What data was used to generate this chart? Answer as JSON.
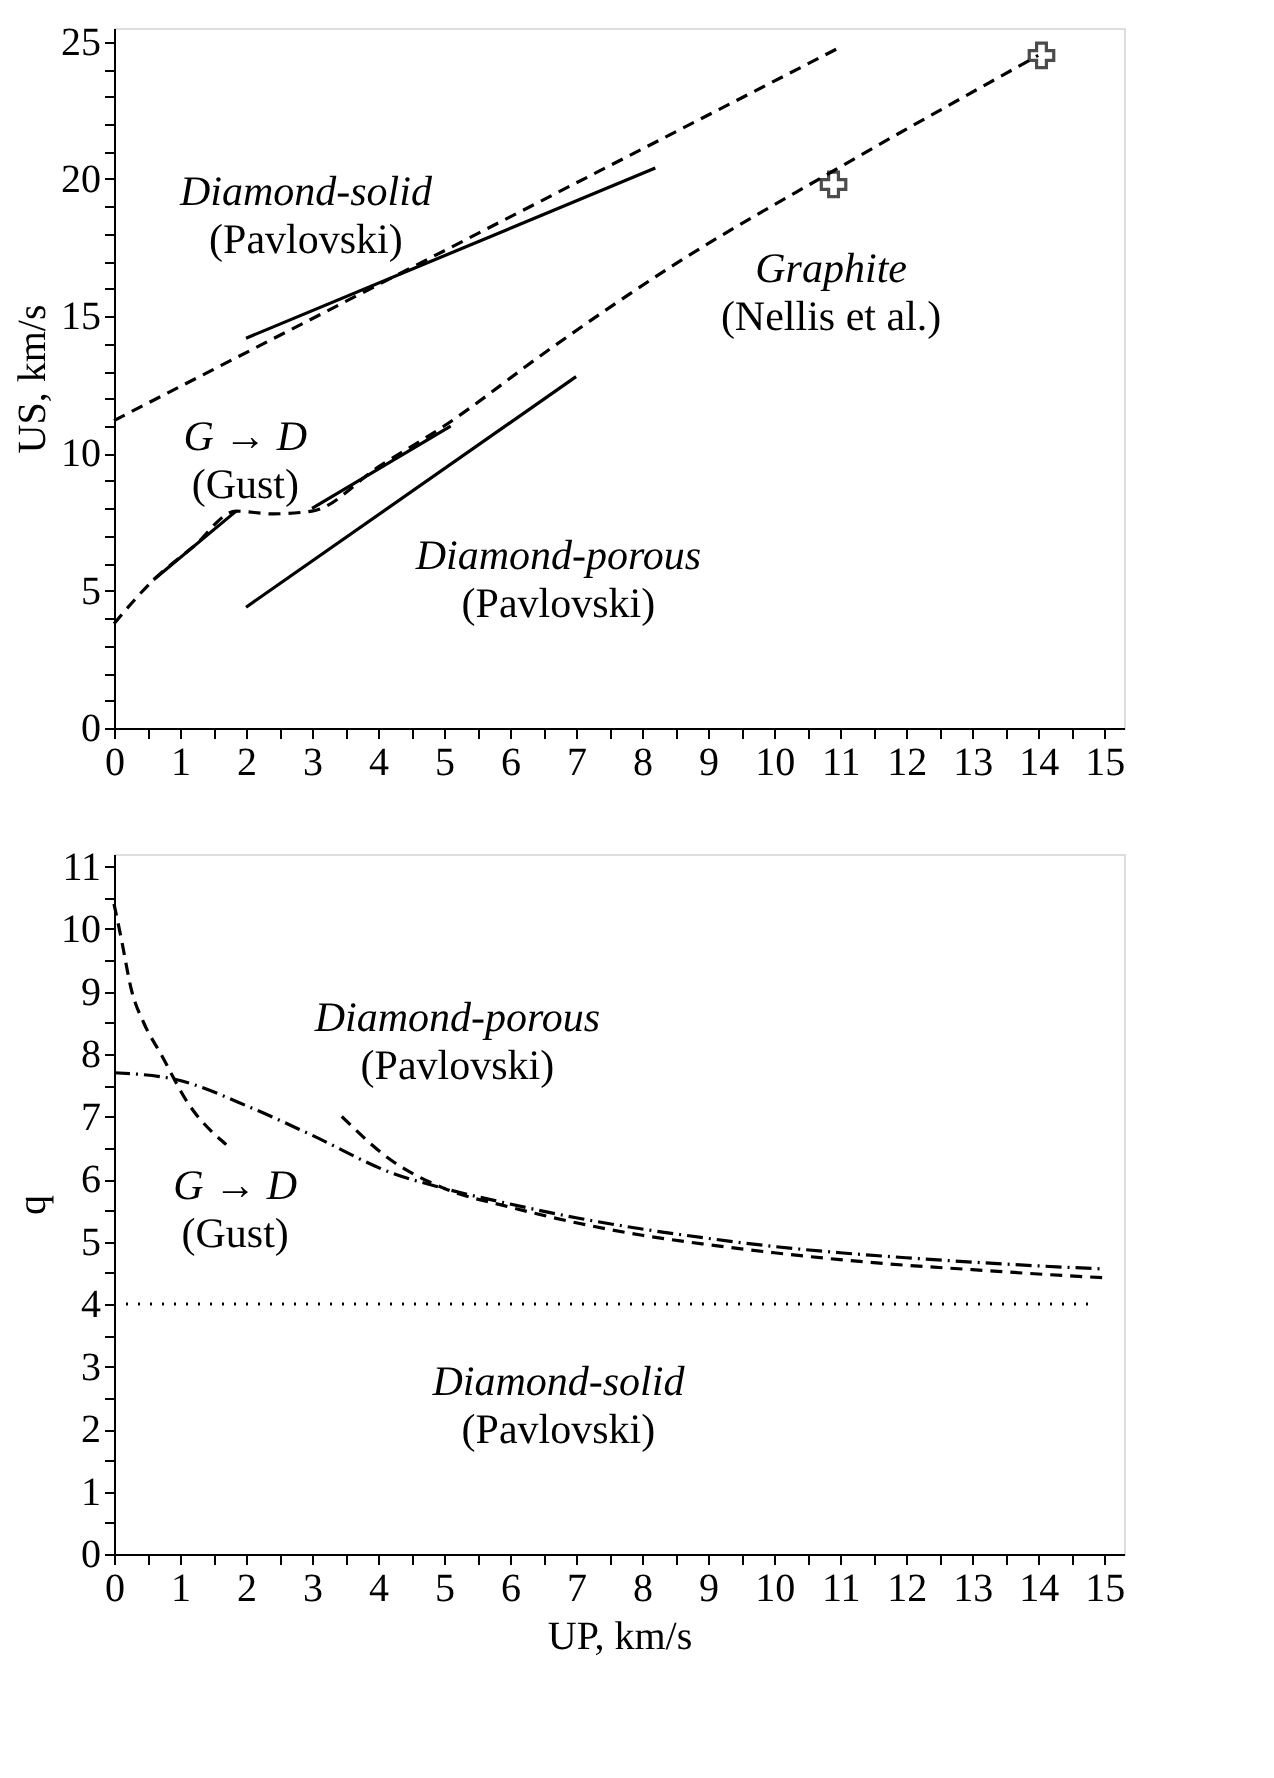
{
  "chart_data": [
    {
      "type": "line",
      "ylabel": "US, km/s",
      "xlim": [
        0,
        15.3
      ],
      "ylim": [
        0,
        25.5
      ],
      "xticks": [
        0,
        {
          "value": 0.5,
          "label": null
        },
        1,
        {
          "value": 1.5,
          "label": null
        },
        2,
        {
          "value": 2.5,
          "label": null
        },
        3,
        {
          "value": 3.5,
          "label": null
        },
        4,
        {
          "value": 4.5,
          "label": null
        },
        5,
        {
          "value": 5.5,
          "label": null
        },
        6,
        {
          "value": 6.5,
          "label": null
        },
        7,
        {
          "value": 7.5,
          "label": null
        },
        8,
        {
          "value": 8.5,
          "label": null
        },
        9,
        {
          "value": 9.5,
          "label": null
        },
        10,
        {
          "value": 10.5,
          "label": null
        },
        11,
        {
          "value": 11.5,
          "label": null
        },
        12,
        {
          "value": 12.5,
          "label": null
        },
        13,
        {
          "value": 13.5,
          "label": null
        },
        14,
        {
          "value": 14.5,
          "label": null
        },
        15
      ],
      "yticks": [
        0,
        {
          "value": 1,
          "label": null
        },
        {
          "value": 2,
          "label": null
        },
        {
          "value": 3,
          "label": null
        },
        {
          "value": 4,
          "label": null
        },
        5,
        {
          "value": 6,
          "label": null
        },
        {
          "value": 7,
          "label": null
        },
        {
          "value": 8,
          "label": null
        },
        {
          "value": 9,
          "label": null
        },
        10,
        {
          "value": 11,
          "label": null
        },
        {
          "value": 12,
          "label": null
        },
        {
          "value": 13,
          "label": null
        },
        {
          "value": 14,
          "label": null
        },
        15,
        {
          "value": 16,
          "label": null
        },
        {
          "value": 17,
          "label": null
        },
        {
          "value": 18,
          "label": null
        },
        {
          "value": 19,
          "label": null
        },
        20,
        {
          "value": 21,
          "label": null
        },
        {
          "value": 22,
          "label": null
        },
        {
          "value": 23,
          "label": null
        },
        {
          "value": 24,
          "label": null
        },
        25
      ],
      "grid": false,
      "series": [
        {
          "line_style": "solid",
          "color": "#000000",
          "x": [
            2.0,
            8.2
          ],
          "values": [
            14.2,
            20.4
          ]
        },
        {
          "line_style": "dashed",
          "color": "#000000",
          "x": [
            0,
            11.0
          ],
          "values": [
            11.2,
            24.8
          ]
        },
        {
          "line_style": "dashed",
          "color": "#000000",
          "x": [
            0,
            0.6,
            1.2,
            1.85,
            2.4,
            3.0,
            4.0,
            5.0,
            6.6,
            8.5,
            10.9,
            14.0
          ],
          "values": [
            3.8,
            5.4,
            6.6,
            7.9,
            7.8,
            7.9,
            9.5,
            11.0,
            13.8,
            16.9,
            20.3,
            24.5
          ]
        },
        {
          "line_style": "solid",
          "color": "#000000",
          "x": [
            0.6,
            1.85
          ],
          "values": [
            5.4,
            7.9
          ]
        },
        {
          "line_style": "solid",
          "color": "#000000",
          "x": [
            3.0,
            5.1
          ],
          "values": [
            8.0,
            11.0
          ]
        },
        {
          "line_style": "solid",
          "color": "#000000",
          "x": [
            2.0,
            7.0
          ],
          "values": [
            4.4,
            12.8
          ]
        },
        {
          "type": "scatter",
          "marker": "cross",
          "color": "#000000",
          "x": [
            10.9,
            14.05
          ],
          "values": [
            19.8,
            24.5
          ]
        }
      ],
      "annotations": [
        "Diamond-solid\n(Pavlovski)",
        "Graphite\n(Nellis et al.)",
        "G → D\n(Gust)",
        "Diamond-porous\n(Pavlovski)"
      ]
    },
    {
      "type": "line",
      "xlabel": "UP, km/s",
      "ylabel": "q",
      "xlim": [
        0,
        15.3
      ],
      "ylim": [
        0,
        11.2
      ],
      "xticks": [
        0,
        {
          "value": 0.5,
          "label": null
        },
        1,
        {
          "value": 1.5,
          "label": null
        },
        2,
        {
          "value": 2.5,
          "label": null
        },
        3,
        {
          "value": 3.5,
          "label": null
        },
        4,
        {
          "value": 4.5,
          "label": null
        },
        5,
        {
          "value": 5.5,
          "label": null
        },
        6,
        {
          "value": 6.5,
          "label": null
        },
        7,
        {
          "value": 7.5,
          "label": null
        },
        8,
        {
          "value": 8.5,
          "label": null
        },
        9,
        {
          "value": 9.5,
          "label": null
        },
        10,
        {
          "value": 10.5,
          "label": null
        },
        11,
        {
          "value": 11.5,
          "label": null
        },
        12,
        {
          "value": 12.5,
          "label": null
        },
        13,
        {
          "value": 13.5,
          "label": null
        },
        14,
        {
          "value": 14.5,
          "label": null
        },
        15
      ],
      "yticks": [
        0,
        {
          "value": 0.5,
          "label": null
        },
        1,
        {
          "value": 1.5,
          "label": null
        },
        2,
        {
          "value": 2.5,
          "label": null
        },
        3,
        {
          "value": 3.5,
          "label": null
        },
        4,
        {
          "value": 4.5,
          "label": null
        },
        5,
        {
          "value": 5.5,
          "label": null
        },
        6,
        {
          "value": 6.5,
          "label": null
        },
        7,
        {
          "value": 7.5,
          "label": null
        },
        8,
        {
          "value": 8.5,
          "label": null
        },
        9,
        {
          "value": 9.5,
          "label": null
        },
        10,
        {
          "value": 10.5,
          "label": null
        },
        11
      ],
      "grid": false,
      "series": [
        {
          "line_style": "dashed",
          "color": "#000000",
          "x": [
            0,
            0.1,
            0.27,
            0.45,
            0.71,
            1.13,
            1.7
          ],
          "values": [
            10.4,
            9.9,
            9.0,
            8.5,
            8.0,
            7.2,
            6.55
          ]
        },
        {
          "line_style": "dashdot",
          "color": "#000000",
          "x": [
            0,
            0.9,
            2.1,
            3.0,
            4.2,
            5.0,
            6.0,
            7.0,
            8.0,
            9.0,
            10.0,
            11.0,
            12.0,
            13.0,
            14.0,
            15.0
          ],
          "values": [
            7.7,
            7.6,
            7.13,
            6.7,
            6.1,
            5.85,
            5.6,
            5.38,
            5.2,
            5.05,
            4.92,
            4.82,
            4.74,
            4.67,
            4.61,
            4.56
          ]
        },
        {
          "line_style": "dashed",
          "color": "#000000",
          "x": [
            3.45,
            4.2,
            5.0,
            6.0,
            7.0,
            8.0,
            9.0,
            10.0,
            11.0,
            12.0,
            13.0,
            14.0,
            15.0
          ],
          "values": [
            7.0,
            6.3,
            5.85,
            5.55,
            5.3,
            5.1,
            4.95,
            4.82,
            4.71,
            4.62,
            4.55,
            4.48,
            4.42
          ]
        },
        {
          "line_style": "dotted",
          "color": "#000000",
          "x": [
            0,
            14.8
          ],
          "values": [
            4.0,
            4.0
          ]
        }
      ],
      "annotations": [
        "Diamond-porous\n(Pavlovski)",
        "G → D\n(Gust)",
        "Diamond-solid\n(Pavlovski)"
      ]
    }
  ]
}
